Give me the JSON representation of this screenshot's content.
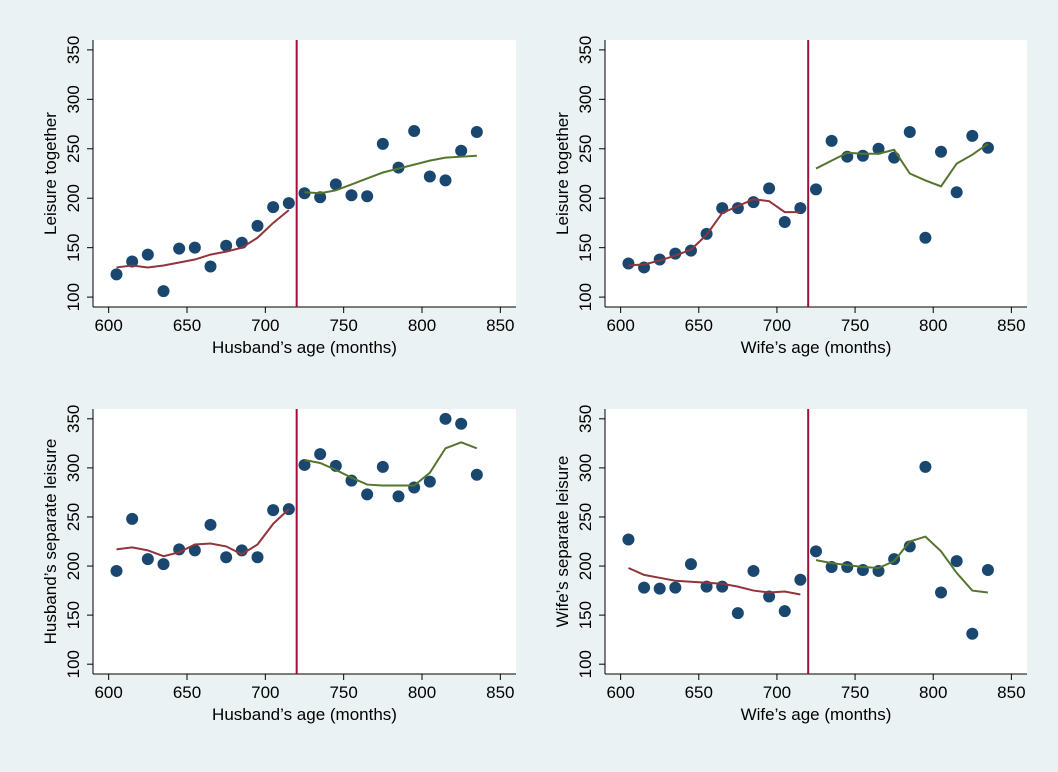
{
  "chart_data": [
    {
      "type": "scatter",
      "xlabel": "Husband’s age (months)",
      "ylabel": "Leisure together",
      "xlim": [
        590,
        860
      ],
      "ylim": [
        90,
        360
      ],
      "xticks": [
        600,
        650,
        700,
        750,
        800,
        850
      ],
      "yticks": [
        100,
        150,
        200,
        250,
        300,
        350
      ],
      "vline": 720,
      "vline_color": "#a0103a",
      "series": [
        {
          "mode": "markers",
          "color": "#1a476f",
          "x": [
            605,
            615,
            625,
            635,
            645,
            655,
            665,
            675,
            685,
            695,
            705,
            715,
            725,
            735,
            745,
            755,
            765,
            775,
            785,
            795,
            805,
            815,
            825,
            835
          ],
          "values": [
            123,
            136,
            143,
            106,
            149,
            150,
            131,
            152,
            155,
            172,
            191,
            195,
            205,
            201,
            214,
            203,
            202,
            255,
            231,
            268,
            222,
            218,
            248,
            267
          ]
        },
        {
          "mode": "line",
          "color": "#90353b",
          "x": [
            605,
            615,
            625,
            635,
            645,
            655,
            665,
            675,
            685,
            695,
            705,
            715
          ],
          "values": [
            130,
            132,
            130,
            132,
            135,
            138,
            143,
            146,
            150,
            160,
            175,
            188
          ]
        },
        {
          "mode": "line",
          "color": "#55752f",
          "x": [
            725,
            735,
            745,
            755,
            765,
            775,
            785,
            795,
            805,
            815,
            825,
            835
          ],
          "values": [
            206,
            205,
            208,
            214,
            220,
            226,
            230,
            234,
            238,
            241,
            242,
            243
          ]
        }
      ]
    },
    {
      "type": "scatter",
      "xlabel": "Wife’s age (months)",
      "ylabel": "Leisure together",
      "xlim": [
        590,
        860
      ],
      "ylim": [
        90,
        360
      ],
      "xticks": [
        600,
        650,
        700,
        750,
        800,
        850
      ],
      "yticks": [
        100,
        150,
        200,
        250,
        300,
        350
      ],
      "vline": 720,
      "vline_color": "#a0103a",
      "series": [
        {
          "mode": "markers",
          "color": "#1a476f",
          "x": [
            605,
            615,
            625,
            635,
            645,
            655,
            665,
            675,
            685,
            695,
            705,
            715,
            725,
            735,
            745,
            755,
            765,
            775,
            785,
            795,
            805,
            815,
            825,
            835
          ],
          "values": [
            134,
            130,
            138,
            144,
            147,
            164,
            190,
            190,
            196,
            210,
            176,
            190,
            209,
            258,
            242,
            243,
            250,
            241,
            267,
            160,
            247,
            206,
            263,
            251
          ]
        },
        {
          "mode": "line",
          "color": "#90353b",
          "x": [
            605,
            615,
            625,
            635,
            645,
            655,
            665,
            675,
            685,
            695,
            705,
            715
          ],
          "values": [
            132,
            133,
            137,
            142,
            148,
            163,
            185,
            192,
            199,
            197,
            186,
            186
          ]
        },
        {
          "mode": "line",
          "color": "#55752f",
          "x": [
            725,
            735,
            745,
            755,
            765,
            775,
            785,
            795,
            805,
            815,
            825,
            835
          ],
          "values": [
            230,
            238,
            246,
            245,
            245,
            249,
            225,
            218,
            212,
            235,
            244,
            255
          ]
        }
      ]
    },
    {
      "type": "scatter",
      "xlabel": "Husband’s age (months)",
      "ylabel": "Husband’s separate leisure",
      "xlim": [
        590,
        860
      ],
      "ylim": [
        90,
        360
      ],
      "xticks": [
        600,
        650,
        700,
        750,
        800,
        850
      ],
      "yticks": [
        100,
        150,
        200,
        250,
        300,
        350
      ],
      "vline": 720,
      "vline_color": "#a0103a",
      "series": [
        {
          "mode": "markers",
          "color": "#1a476f",
          "x": [
            605,
            615,
            625,
            635,
            645,
            655,
            665,
            675,
            685,
            695,
            705,
            715,
            725,
            735,
            745,
            755,
            765,
            775,
            785,
            795,
            805,
            815,
            825,
            835
          ],
          "values": [
            195,
            248,
            207,
            202,
            217,
            216,
            242,
            209,
            216,
            209,
            257,
            258,
            303,
            314,
            302,
            287,
            273,
            301,
            271,
            280,
            286,
            350,
            345,
            293
          ]
        },
        {
          "mode": "line",
          "color": "#90353b",
          "x": [
            605,
            615,
            625,
            635,
            645,
            655,
            665,
            675,
            685,
            695,
            705,
            715
          ],
          "values": [
            217,
            219,
            216,
            210,
            214,
            222,
            223,
            220,
            212,
            222,
            243,
            258
          ]
        },
        {
          "mode": "line",
          "color": "#55752f",
          "x": [
            725,
            735,
            745,
            755,
            765,
            775,
            785,
            795,
            805,
            815,
            825,
            835
          ],
          "values": [
            308,
            305,
            298,
            290,
            283,
            282,
            282,
            282,
            295,
            320,
            326,
            320
          ]
        }
      ]
    },
    {
      "type": "scatter",
      "xlabel": "Wife’s age (months)",
      "ylabel": "Wife’s separate leisure",
      "xlim": [
        590,
        860
      ],
      "ylim": [
        90,
        360
      ],
      "xticks": [
        600,
        650,
        700,
        750,
        800,
        850
      ],
      "yticks": [
        100,
        150,
        200,
        250,
        300,
        350
      ],
      "vline": 720,
      "vline_color": "#a0103a",
      "series": [
        {
          "mode": "markers",
          "color": "#1a476f",
          "x": [
            605,
            615,
            625,
            635,
            645,
            655,
            665,
            675,
            685,
            695,
            705,
            715,
            725,
            735,
            745,
            755,
            765,
            775,
            785,
            795,
            805,
            815,
            825,
            835
          ],
          "values": [
            227,
            178,
            177,
            178,
            202,
            179,
            179,
            152,
            195,
            169,
            154,
            186,
            215,
            199,
            199,
            196,
            195,
            207,
            220,
            301,
            173,
            205,
            131,
            196
          ]
        },
        {
          "mode": "line",
          "color": "#90353b",
          "x": [
            605,
            615,
            625,
            635,
            645,
            655,
            665,
            675,
            685,
            695,
            705,
            715
          ],
          "values": [
            198,
            191,
            188,
            185,
            184,
            183,
            182,
            179,
            175,
            173,
            174,
            171
          ]
        },
        {
          "mode": "line",
          "color": "#55752f",
          "x": [
            725,
            735,
            745,
            755,
            765,
            775,
            785,
            795,
            805,
            815,
            825,
            835
          ],
          "values": [
            206,
            203,
            201,
            199,
            198,
            205,
            225,
            230,
            215,
            193,
            175,
            173
          ]
        }
      ]
    }
  ]
}
